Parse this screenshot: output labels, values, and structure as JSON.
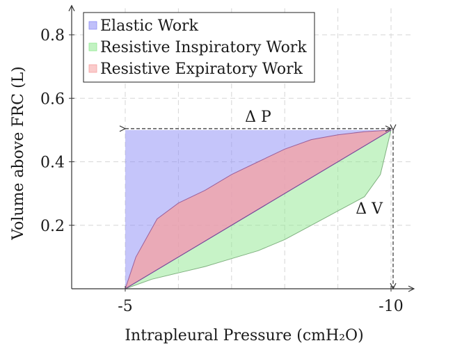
{
  "chart_data": {
    "type": "area",
    "title": "",
    "xlabel": "Intrapleural Pressure (cmH₂O)",
    "ylabel": "Volume above FRC (L)",
    "xlim": [
      -4.5,
      -10.5
    ],
    "ylim": [
      0,
      0.9
    ],
    "x_ticks": [
      {
        "value": -5,
        "label": "-5"
      },
      {
        "value": -10,
        "label": "-10"
      }
    ],
    "y_ticks": [
      {
        "value": 0.2,
        "label": "0.2"
      },
      {
        "value": 0.4,
        "label": "0.4"
      },
      {
        "value": 0.6,
        "label": "0.6"
      },
      {
        "value": 0.8,
        "label": "0.8"
      }
    ],
    "grid_x": [
      -5,
      -6,
      -7,
      -8,
      -9,
      -10
    ],
    "grid_y": [
      0.2,
      0.4,
      0.6,
      0.8
    ],
    "grid": true,
    "legend_position": "top-left",
    "series": [
      {
        "name": "Elastic Work",
        "color": "#8c8cf5",
        "points": [
          [
            -5,
            0
          ],
          [
            -5,
            0.5
          ],
          [
            -10,
            0.5
          ]
        ]
      },
      {
        "name": "Resistive Inspiratory Work",
        "color": "#8fe88f",
        "upper": [
          [
            -5,
            0
          ],
          [
            -10,
            0.5
          ]
        ],
        "lower": [
          [
            -5,
            0
          ],
          [
            -5.5,
            0.03
          ],
          [
            -6,
            0.05
          ],
          [
            -6.5,
            0.07
          ],
          [
            -7,
            0.095
          ],
          [
            -7.5,
            0.12
          ],
          [
            -8,
            0.155
          ],
          [
            -8.5,
            0.2
          ],
          [
            -9,
            0.245
          ],
          [
            -9.5,
            0.29
          ],
          [
            -9.8,
            0.36
          ],
          [
            -10,
            0.5
          ]
        ]
      },
      {
        "name": "Resistive Expiratory Work",
        "color": "#f5a0a0",
        "upper": [
          [
            -5,
            0
          ],
          [
            -5.2,
            0.1
          ],
          [
            -5.6,
            0.22
          ],
          [
            -6,
            0.27
          ],
          [
            -6.5,
            0.31
          ],
          [
            -7,
            0.36
          ],
          [
            -7.5,
            0.4
          ],
          [
            -8,
            0.44
          ],
          [
            -8.5,
            0.47
          ],
          [
            -9,
            0.485
          ],
          [
            -9.5,
            0.495
          ],
          [
            -10,
            0.5
          ]
        ],
        "lower": [
          [
            -5,
            0
          ],
          [
            -10,
            0.5
          ]
        ]
      }
    ],
    "annotations": [
      {
        "label": "Δ P",
        "from": [
          -5,
          0.5
        ],
        "to": [
          -10,
          0.5
        ]
      },
      {
        "label": "Δ V",
        "from": [
          -10,
          0.5
        ],
        "to": [
          -10,
          0
        ]
      }
    ]
  }
}
